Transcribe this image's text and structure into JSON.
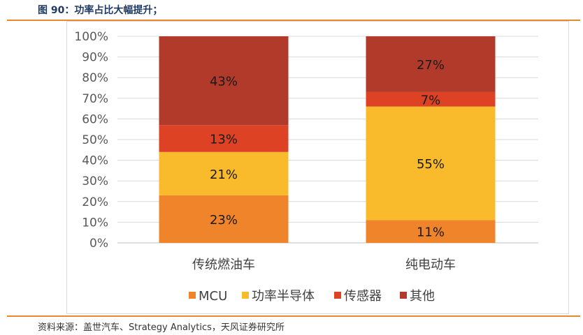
{
  "figure": {
    "title": "图 90：功率占比大幅提升；",
    "source": "资料来源：盖世汽车、Strategy Analytics，天风证券研究所"
  },
  "colors": {
    "rule": "#e8892b",
    "mcu": "#f0842a",
    "power_semi": "#f9bb2b",
    "sensor": "#de4224",
    "other": "#b13a2b"
  },
  "chart_data": {
    "type": "bar",
    "stacked": true,
    "categories": [
      "传统燃油车",
      "纯电动车"
    ],
    "series": [
      {
        "name": "MCU",
        "values": [
          23,
          11
        ],
        "labels": [
          "23%",
          "11%"
        ],
        "color": "#f0842a"
      },
      {
        "name": "功率半导体",
        "values": [
          21,
          55
        ],
        "labels": [
          "21%",
          "55%"
        ],
        "color": "#f9bb2b"
      },
      {
        "name": "传感器",
        "values": [
          13,
          7
        ],
        "labels": [
          "13%",
          "7%"
        ],
        "color": "#de4224"
      },
      {
        "name": "其他",
        "values": [
          43,
          27
        ],
        "labels": [
          "43%",
          "27%"
        ],
        "color": "#b13a2b"
      }
    ],
    "ylim": [
      0,
      100
    ],
    "yticks": [
      "0%",
      "10%",
      "20%",
      "30%",
      "40%",
      "50%",
      "60%",
      "70%",
      "80%",
      "90%",
      "100%"
    ],
    "grid": true,
    "legend": "bottom"
  }
}
